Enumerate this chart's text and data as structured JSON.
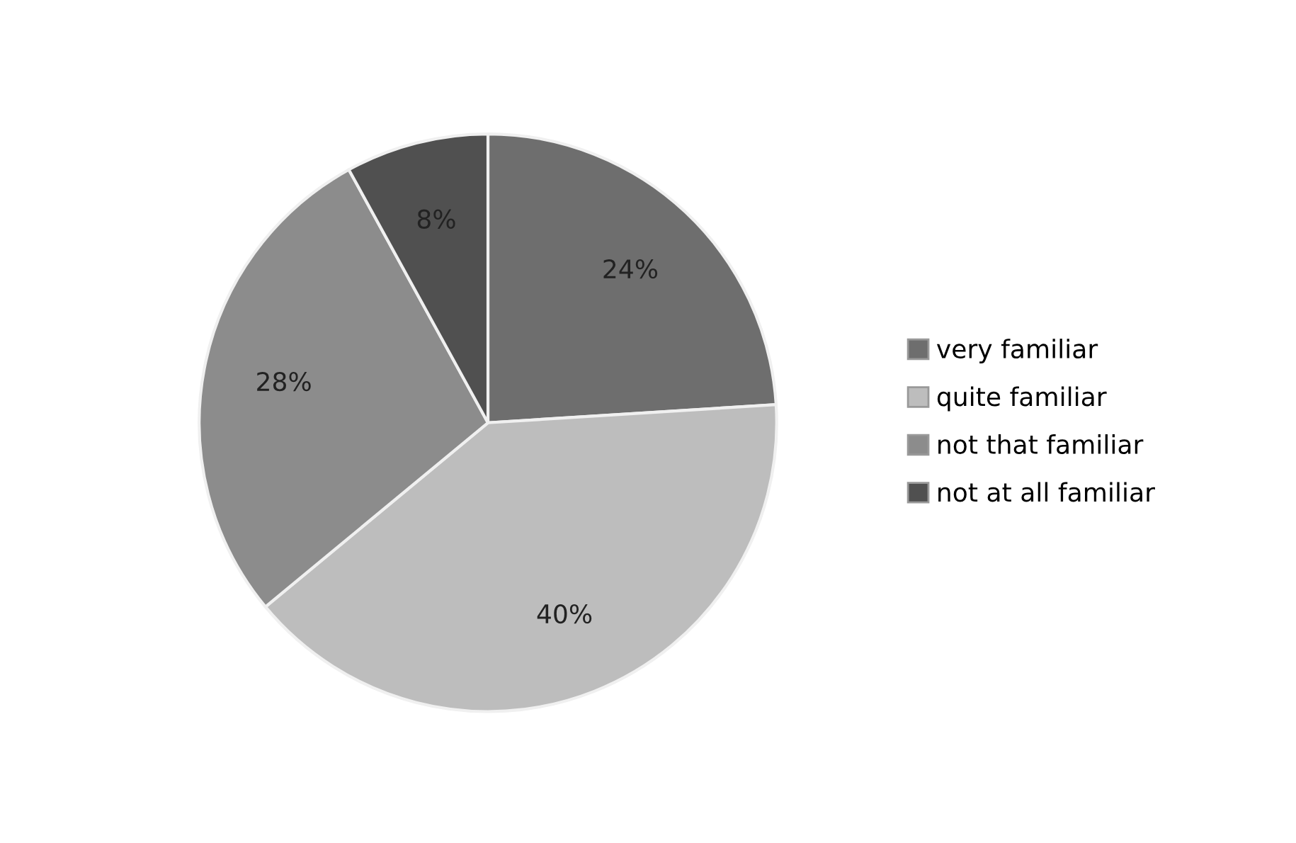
{
  "chart_data": {
    "type": "pie",
    "categories": [
      "very familiar",
      "quite familiar",
      "not that familiar",
      "not at all familiar"
    ],
    "values": [
      24,
      40,
      28,
      8
    ],
    "value_labels": [
      "24%",
      "40%",
      "28%",
      "8%"
    ],
    "colors": [
      "#6e6e6e",
      "#bdbdbd",
      "#8c8c8c",
      "#505050"
    ],
    "legend": "right"
  }
}
